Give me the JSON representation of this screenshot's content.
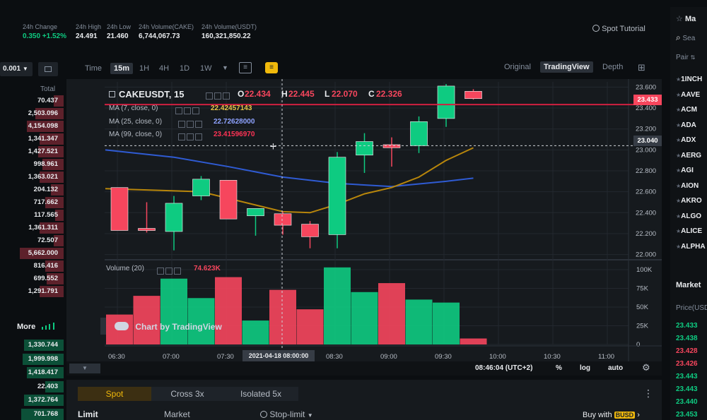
{
  "header": {
    "stats": [
      {
        "label": "24h Change",
        "value": "0.350 +1.52%",
        "green": true
      },
      {
        "label": "24h High",
        "value": "24.491"
      },
      {
        "label": "24h Low",
        "value": "21.460"
      },
      {
        "label": "24h Volume(CAKE)",
        "value": "6,744,067.73"
      },
      {
        "label": "24h Volume(USDT)",
        "value": "160,321,850.22"
      }
    ],
    "spot_tutorial": "Spot Tutorial"
  },
  "orderbook": {
    "precision": "0.001",
    "total_label": "Total",
    "sell_rows": [
      "70.437",
      "2,503.096",
      "4,154.098",
      "1,341.347",
      "1,427.521",
      "998.961",
      "1,363.021",
      "204.132",
      "717.662",
      "117.565",
      "1,361.311",
      "72.507",
      "5,662.000",
      "816.416",
      "699.552",
      "1,291.791"
    ],
    "more_label": "More",
    "buy_rows": [
      "1,330.744",
      "1,999.998",
      "1,418.417",
      "22.403",
      "1,372.764",
      "701.768"
    ]
  },
  "toolbar": {
    "intervals": [
      "Time",
      "15m",
      "1H",
      "4H",
      "1D",
      "1W"
    ],
    "active_interval": "15m",
    "views": [
      "Original",
      "TradingView",
      "Depth"
    ],
    "active_view": "TradingView"
  },
  "chart": {
    "symbol": "CAKEUSDT, 15",
    "o_label": "O",
    "o": "22.434",
    "h_label": "H",
    "h": "22.445",
    "l_label": "L",
    "l": "22.070",
    "c_label": "C",
    "c": "22.326",
    "ma7_label": "MA (7, close, 0)",
    "ma7_value": "22.42457143",
    "ma25_label": "MA (25, close, 0)",
    "ma25_value": "22.72628000",
    "ma99_label": "MA (99, close, 0)",
    "ma99_value": "23.41596970",
    "volume_label": "Volume (20)",
    "volume_value": "74.623K",
    "watermark": "Chart by TradingView",
    "current_price_tag": "23.433",
    "crosshair_price_tag": "23.040",
    "crosshair_time_tag": "2021-04-18 08:00:00",
    "clock": "08:46:04 (UTC+2)",
    "pct_label": "%",
    "log_label": "log",
    "auto_label": "auto",
    "colors": {
      "up": "#0ecb81",
      "down": "#f6465d",
      "ma7": "#b8860b",
      "ma25": "#2f5bd3",
      "ma99": "#d02040"
    }
  },
  "chart_data": {
    "type": "candlestick",
    "x": [
      "06:30",
      "07:00",
      "07:30",
      "08:00",
      "08:30",
      "09:00",
      "09:30",
      "10:00",
      "10:30",
      "11:00"
    ],
    "price_ticks": [
      "23.600",
      "23.400",
      "23.200",
      "23.000",
      "22.800",
      "22.600",
      "22.400",
      "22.200",
      "22.000"
    ],
    "volume_ticks": [
      "100K",
      "75K",
      "50K",
      "25K",
      "0"
    ],
    "ylim": [
      21.95,
      23.65
    ],
    "volume_ylim": [
      0,
      100
    ],
    "candles": [
      {
        "o": 22.64,
        "h": 22.64,
        "l": 22.23,
        "c": 22.23,
        "v": 40
      },
      {
        "o": 22.25,
        "h": 22.5,
        "l": 22.21,
        "c": 22.23,
        "v": 65
      },
      {
        "o": 22.22,
        "h": 22.56,
        "l": 22.04,
        "c": 22.49,
        "v": 88
      },
      {
        "o": 22.56,
        "h": 22.75,
        "l": 22.52,
        "c": 22.72,
        "v": 62
      },
      {
        "o": 22.71,
        "h": 22.71,
        "l": 22.34,
        "c": 22.34,
        "v": 90
      },
      {
        "o": 22.37,
        "h": 22.44,
        "l": 22.18,
        "c": 22.44,
        "v": 32
      },
      {
        "o": 22.39,
        "h": 22.41,
        "l": 22.19,
        "c": 22.28,
        "v": 73
      },
      {
        "o": 22.29,
        "h": 22.32,
        "l": 22.06,
        "c": 22.17,
        "v": 47
      },
      {
        "o": 22.19,
        "h": 22.98,
        "l": 22.06,
        "c": 22.93,
        "v": 103
      },
      {
        "o": 22.95,
        "h": 23.16,
        "l": 22.78,
        "c": 23.08,
        "v": 70
      },
      {
        "o": 23.05,
        "h": 23.12,
        "l": 22.84,
        "c": 23.02,
        "v": 82
      },
      {
        "o": 23.04,
        "h": 23.32,
        "l": 22.97,
        "c": 23.27,
        "v": 60
      },
      {
        "o": 23.3,
        "h": 23.63,
        "l": 23.22,
        "c": 23.61,
        "v": 56
      },
      {
        "o": 23.56,
        "h": 23.58,
        "l": 23.48,
        "c": 23.49,
        "v": 8
      }
    ],
    "ma7": [
      [
        0,
        22.63
      ],
      [
        3,
        22.6
      ],
      [
        6,
        22.41
      ],
      [
        7,
        22.4
      ],
      [
        8,
        22.48
      ],
      [
        9,
        22.58
      ],
      [
        10,
        22.64
      ],
      [
        11,
        22.74
      ],
      [
        12,
        22.9
      ],
      [
        13,
        23.02
      ]
    ],
    "ma25": [
      [
        0,
        23.0
      ],
      [
        2,
        22.93
      ],
      [
        4,
        22.84
      ],
      [
        6,
        22.74
      ],
      [
        8,
        22.68
      ],
      [
        10,
        22.65
      ],
      [
        12,
        22.7
      ],
      [
        13,
        22.73
      ]
    ]
  },
  "left_tools": [
    "crosshair-icon",
    "trendline-icon",
    "fib-icon",
    "brush-icon",
    "text-icon",
    "pattern-icon",
    "measure-icon",
    "back-arrow-icon",
    "ruler-icon",
    "zoom-in-icon",
    "magnet-icon"
  ],
  "order_form": {
    "tabs": [
      "Spot",
      "Cross 3x",
      "Isolated 5x"
    ],
    "active_tab": "Spot",
    "types": [
      "Limit",
      "Market",
      "Stop-limit"
    ],
    "buy_with_label": "Buy with",
    "buy_with_asset": "BUSD"
  },
  "market_list": {
    "title": "Ma",
    "search_placeholder": "Sea",
    "pair_label": "Pair",
    "pairs": [
      "1INCH",
      "AAVE",
      "ACM",
      "ADA",
      "ADX",
      "AERG",
      "AGI",
      "AION",
      "AKRO",
      "ALGO",
      "ALICE",
      "ALPHA"
    ],
    "trades_title": "Market",
    "price_label": "Price(USD",
    "prices": [
      {
        "v": "23.433",
        "up": true
      },
      {
        "v": "23.438",
        "up": true
      },
      {
        "v": "23.428",
        "up": false
      },
      {
        "v": "23.426",
        "up": false
      },
      {
        "v": "23.443",
        "up": true
      },
      {
        "v": "23.443",
        "up": true
      },
      {
        "v": "23.440",
        "up": true
      },
      {
        "v": "23.453",
        "up": true
      }
    ]
  }
}
